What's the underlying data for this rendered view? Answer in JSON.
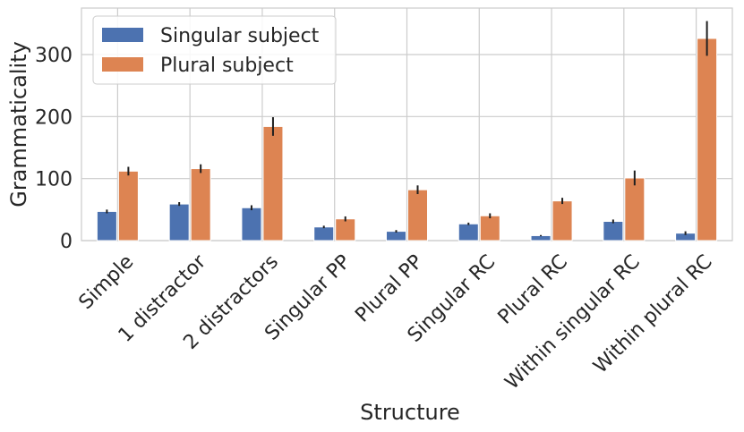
{
  "chart_data": {
    "type": "bar",
    "title": "",
    "xlabel": "Structure",
    "ylabel": "Grammaticality",
    "ylim": [
      0,
      375
    ],
    "yticks": [
      0,
      100,
      200,
      300
    ],
    "grid": true,
    "legend_placement": "top-left",
    "categories": [
      "Simple",
      "1 distractor",
      "2 distractors",
      "Singular PP",
      "Plural PP",
      "Singular RC",
      "Plural RC",
      "Within singular RC",
      "Within plural RC"
    ],
    "series": [
      {
        "name": "Singular subject",
        "color": "#4c72b0",
        "values": [
          47,
          59,
          53,
          22,
          15,
          27,
          8,
          31,
          12
        ],
        "errors": [
          3,
          3,
          4,
          2,
          2,
          2,
          1,
          3,
          3
        ]
      },
      {
        "name": "Plural subject",
        "color": "#dd8452",
        "values": [
          112,
          116,
          184,
          35,
          82,
          40,
          64,
          101,
          326
        ],
        "errors": [
          7,
          7,
          15,
          4,
          7,
          4,
          5,
          12,
          28
        ]
      }
    ]
  }
}
